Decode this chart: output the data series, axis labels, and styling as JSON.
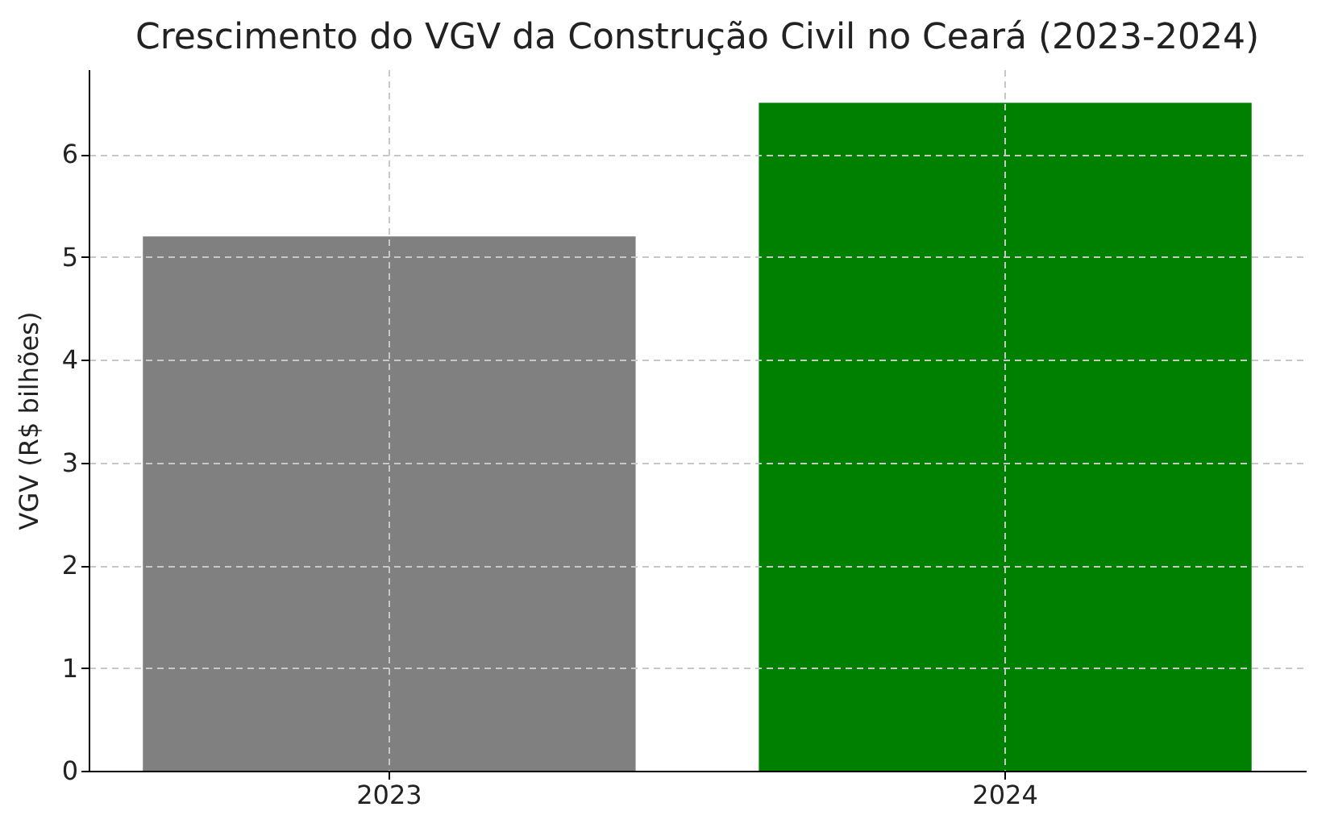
{
  "chart_data": {
    "type": "bar",
    "title": "Crescimento do VGV da Construção Civil no Ceará (2023-2024)",
    "ylabel": "VGV (R$ bilhões)",
    "categories": [
      "2023",
      "2024"
    ],
    "values": [
      5.2,
      6.5
    ],
    "colors": [
      "#808080",
      "#008000"
    ],
    "ylim": [
      0,
      6.825
    ],
    "yticks": [
      0,
      1,
      2,
      3,
      4,
      5,
      6
    ],
    "grid": true
  }
}
